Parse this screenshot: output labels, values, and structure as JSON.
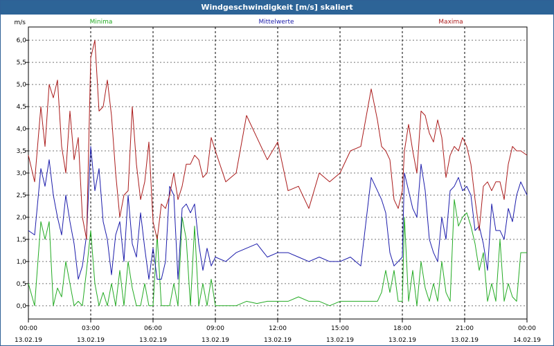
{
  "window": {
    "title": "Windgeschwindigkeit [m/s] skaliert"
  },
  "chart_data": {
    "type": "line",
    "title": "Windgeschwindigkeit [m/s] skaliert",
    "ylabel": "m/s",
    "xlabel": "",
    "ylim": [
      -0.3,
      6.3
    ],
    "xlim": [
      0,
      24
    ],
    "yticks": [
      0.0,
      0.5,
      1.0,
      1.5,
      2.0,
      2.5,
      3.0,
      3.5,
      4.0,
      4.5,
      5.0,
      5.5,
      6.0
    ],
    "ytick_labels": [
      "0,0",
      "0,5",
      "1,0",
      "1,5",
      "2,0",
      "2,5",
      "3,0",
      "3,5",
      "4,0",
      "4,5",
      "5,0",
      "5,5",
      "6,0"
    ],
    "xticks": [
      0,
      3,
      6,
      9,
      12,
      15,
      18,
      21,
      24
    ],
    "xtick_time_labels": [
      "00:00",
      "03:00",
      "06:00",
      "09:00",
      "12:00",
      "15:00",
      "18:00",
      "21:00",
      "00:00"
    ],
    "xtick_date_labels": [
      "13.02.19",
      "13.02.19",
      "13.02.19",
      "13.02.19",
      "13.02.19",
      "13.02.19",
      "13.02.19",
      "13.02.19",
      "14.02.19"
    ],
    "grid": true,
    "legend_position": "top",
    "x_unit": "hours",
    "series": [
      {
        "name": "Minima",
        "color": "#22aa22",
        "x": [
          0,
          0.3,
          0.6,
          0.8,
          1.0,
          1.2,
          1.4,
          1.6,
          1.8,
          2.0,
          2.2,
          2.4,
          2.6,
          2.8,
          3.0,
          3.2,
          3.4,
          3.6,
          3.8,
          4.0,
          4.2,
          4.4,
          4.6,
          4.8,
          5.0,
          5.2,
          5.4,
          5.6,
          5.8,
          6.0,
          6.2,
          6.4,
          6.6,
          6.8,
          7.0,
          7.2,
          7.4,
          7.6,
          7.8,
          8.0,
          8.2,
          8.4,
          8.6,
          8.8,
          9.0,
          9.5,
          10.0,
          10.5,
          11.0,
          11.5,
          12.0,
          12.5,
          13.0,
          13.5,
          14.0,
          14.5,
          15.0,
          15.5,
          16.0,
          16.5,
          16.8,
          17.0,
          17.2,
          17.4,
          17.6,
          17.8,
          18.0,
          18.1,
          18.3,
          18.5,
          18.7,
          18.9,
          19.1,
          19.3,
          19.5,
          19.7,
          19.9,
          20.1,
          20.3,
          20.5,
          20.7,
          20.9,
          21.1,
          21.3,
          21.5,
          21.7,
          21.9,
          22.1,
          22.3,
          22.5,
          22.7,
          22.9,
          23.1,
          23.3,
          23.5,
          23.7,
          24.0
        ],
        "y": [
          0.5,
          0.0,
          1.9,
          1.5,
          1.9,
          0.0,
          0.4,
          0.2,
          1.0,
          0.5,
          0.0,
          0.1,
          0.0,
          0.8,
          1.7,
          0.5,
          0.0,
          0.3,
          0.0,
          0.5,
          0.0,
          0.8,
          0.0,
          1.0,
          0.4,
          0.0,
          0.0,
          0.5,
          0.0,
          0.0,
          1.6,
          0.0,
          0.0,
          0.0,
          0.5,
          0.0,
          2.0,
          1.5,
          0.0,
          1.8,
          0.0,
          0.5,
          0.0,
          0.6,
          0.0,
          0.0,
          0.0,
          0.1,
          0.05,
          0.1,
          0.1,
          0.1,
          0.2,
          0.1,
          0.1,
          0.0,
          0.1,
          0.1,
          0.1,
          0.1,
          0.1,
          0.3,
          0.8,
          0.3,
          0.8,
          0.1,
          0.1,
          2.0,
          0.1,
          0.8,
          0.0,
          1.0,
          0.4,
          0.1,
          0.5,
          0.1,
          1.0,
          0.3,
          0.1,
          2.4,
          1.8,
          2.0,
          2.1,
          1.8,
          1.4,
          0.8,
          1.2,
          0.1,
          0.5,
          0.1,
          1.5,
          0.1,
          0.5,
          0.2,
          0.1,
          1.2,
          1.2
        ]
      },
      {
        "name": "Mittelwerte",
        "color": "#1a1aaa",
        "x": [
          0,
          0.3,
          0.6,
          0.8,
          1.0,
          1.2,
          1.4,
          1.6,
          1.8,
          2.0,
          2.2,
          2.4,
          2.6,
          2.8,
          3.0,
          3.2,
          3.4,
          3.6,
          3.8,
          4.0,
          4.2,
          4.4,
          4.6,
          4.8,
          5.0,
          5.2,
          5.4,
          5.6,
          5.8,
          6.0,
          6.2,
          6.4,
          6.6,
          6.8,
          7.0,
          7.2,
          7.4,
          7.6,
          7.8,
          8.0,
          8.2,
          8.4,
          8.6,
          8.8,
          9.0,
          9.5,
          10.0,
          10.5,
          11.0,
          11.5,
          12.0,
          12.5,
          13.0,
          13.5,
          14.0,
          14.5,
          15.0,
          15.5,
          16.0,
          16.5,
          16.8,
          17.0,
          17.2,
          17.4,
          17.6,
          17.8,
          18.0,
          18.1,
          18.3,
          18.5,
          18.7,
          18.9,
          19.1,
          19.3,
          19.5,
          19.7,
          19.9,
          20.1,
          20.3,
          20.5,
          20.7,
          20.9,
          21.1,
          21.3,
          21.5,
          21.7,
          21.9,
          22.1,
          22.3,
          22.5,
          22.7,
          22.9,
          23.1,
          23.3,
          23.5,
          23.7,
          24.0
        ],
        "y": [
          1.7,
          1.6,
          3.1,
          2.7,
          3.3,
          2.5,
          2.0,
          1.6,
          2.5,
          1.9,
          1.4,
          0.6,
          0.9,
          1.6,
          3.6,
          2.6,
          3.1,
          1.9,
          1.5,
          0.7,
          1.6,
          1.9,
          1.0,
          2.5,
          1.4,
          1.1,
          2.1,
          1.3,
          0.6,
          1.3,
          0.6,
          0.6,
          1.0,
          2.7,
          2.5,
          0.6,
          2.2,
          2.3,
          2.1,
          2.3,
          1.4,
          0.8,
          1.3,
          0.9,
          1.1,
          1.0,
          1.2,
          1.3,
          1.4,
          1.1,
          1.2,
          1.2,
          1.1,
          1.0,
          1.1,
          1.0,
          1.0,
          1.1,
          0.9,
          2.9,
          2.6,
          2.4,
          2.1,
          1.2,
          0.9,
          1.0,
          1.1,
          3.0,
          2.6,
          2.2,
          2.0,
          3.2,
          2.6,
          1.5,
          1.2,
          1.0,
          2.0,
          1.5,
          2.6,
          2.7,
          2.9,
          2.6,
          2.7,
          2.5,
          1.7,
          1.8,
          1.4,
          0.8,
          2.3,
          1.7,
          1.7,
          1.5,
          2.2,
          1.9,
          2.5,
          2.8,
          2.5
        ]
      },
      {
        "name": "Maxima",
        "color": "#aa1a1a",
        "x": [
          0,
          0.3,
          0.6,
          0.8,
          1.0,
          1.2,
          1.4,
          1.6,
          1.8,
          2.0,
          2.2,
          2.4,
          2.6,
          2.8,
          3.0,
          3.2,
          3.4,
          3.6,
          3.8,
          4.0,
          4.2,
          4.4,
          4.6,
          4.8,
          5.0,
          5.2,
          5.4,
          5.6,
          5.8,
          6.0,
          6.2,
          6.4,
          6.6,
          6.8,
          7.0,
          7.2,
          7.4,
          7.6,
          7.8,
          8.0,
          8.2,
          8.4,
          8.6,
          8.8,
          9.0,
          9.5,
          10.0,
          10.5,
          11.0,
          11.5,
          12.0,
          12.5,
          13.0,
          13.5,
          14.0,
          14.5,
          15.0,
          15.5,
          16.0,
          16.5,
          16.8,
          17.0,
          17.2,
          17.4,
          17.6,
          17.8,
          18.0,
          18.1,
          18.3,
          18.5,
          18.7,
          18.9,
          19.1,
          19.3,
          19.5,
          19.7,
          19.9,
          20.1,
          20.3,
          20.5,
          20.7,
          20.9,
          21.1,
          21.3,
          21.5,
          21.7,
          21.9,
          22.1,
          22.3,
          22.5,
          22.7,
          22.9,
          23.1,
          23.3,
          23.5,
          23.7,
          24.0
        ],
        "y": [
          3.4,
          2.8,
          4.5,
          3.6,
          5.0,
          4.7,
          5.1,
          3.6,
          3.0,
          4.4,
          3.3,
          3.8,
          2.0,
          1.5,
          5.6,
          6.0,
          4.4,
          4.5,
          5.1,
          4.3,
          3.0,
          2.0,
          2.5,
          2.6,
          4.5,
          3.2,
          2.4,
          2.8,
          3.7,
          1.9,
          1.5,
          2.3,
          2.2,
          2.5,
          3.0,
          2.4,
          2.7,
          3.2,
          3.2,
          3.4,
          3.3,
          2.9,
          3.0,
          3.8,
          3.5,
          2.8,
          3.0,
          4.3,
          3.8,
          3.3,
          3.7,
          2.6,
          2.7,
          2.2,
          3.0,
          2.8,
          3.0,
          3.5,
          3.6,
          4.9,
          4.2,
          3.6,
          3.5,
          3.3,
          2.4,
          2.2,
          2.6,
          3.5,
          4.1,
          3.5,
          3.0,
          4.4,
          4.3,
          3.9,
          3.7,
          4.2,
          3.8,
          2.9,
          3.4,
          3.6,
          3.5,
          3.8,
          3.6,
          3.2,
          2.4,
          1.7,
          2.7,
          2.8,
          2.6,
          2.8,
          2.8,
          2.4,
          3.2,
          3.6,
          3.5,
          3.5,
          3.4
        ]
      }
    ]
  }
}
